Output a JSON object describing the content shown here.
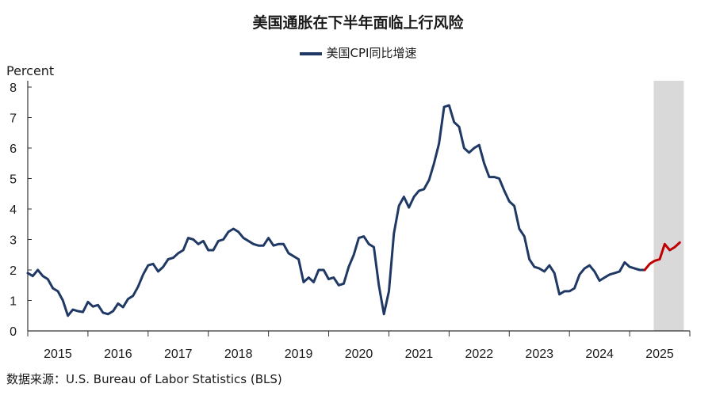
{
  "chart_data": {
    "type": "line",
    "title": "美国通胀在下半年面临上行风险",
    "ylabel": "Percent",
    "ylim": [
      0,
      8
    ],
    "yticks": [
      "0",
      "1",
      "2",
      "3",
      "4",
      "5",
      "6",
      "7",
      "8"
    ],
    "xlim": [
      2015,
      2026
    ],
    "xticks": [
      "2015",
      "2016",
      "2017",
      "2018",
      "2019",
      "2020",
      "2021",
      "2022",
      "2023",
      "2024",
      "2025"
    ],
    "shaded_region": [
      2025.4,
      2025.9
    ],
    "grid": false,
    "legend_position": "top-center",
    "series": [
      {
        "name": "美国CPI同比增速",
        "color": "#1f3864",
        "forecast_color": "#c00000",
        "forecast_start": 2025.25,
        "points": [
          [
            2015.0,
            1.9
          ],
          [
            2015.083,
            1.8
          ],
          [
            2015.167,
            2.0
          ],
          [
            2015.25,
            1.8
          ],
          [
            2015.333,
            1.7
          ],
          [
            2015.417,
            1.4
          ],
          [
            2015.5,
            1.3
          ],
          [
            2015.583,
            1.0
          ],
          [
            2015.667,
            0.5
          ],
          [
            2015.75,
            0.7
          ],
          [
            2015.833,
            0.65
          ],
          [
            2015.917,
            0.62
          ],
          [
            2016.0,
            0.95
          ],
          [
            2016.083,
            0.8
          ],
          [
            2016.167,
            0.85
          ],
          [
            2016.25,
            0.6
          ],
          [
            2016.333,
            0.55
          ],
          [
            2016.417,
            0.65
          ],
          [
            2016.5,
            0.9
          ],
          [
            2016.583,
            0.78
          ],
          [
            2016.667,
            1.05
          ],
          [
            2016.75,
            1.15
          ],
          [
            2016.833,
            1.45
          ],
          [
            2016.917,
            1.85
          ],
          [
            2017.0,
            2.15
          ],
          [
            2017.083,
            2.2
          ],
          [
            2017.167,
            1.95
          ],
          [
            2017.25,
            2.1
          ],
          [
            2017.333,
            2.35
          ],
          [
            2017.417,
            2.4
          ],
          [
            2017.5,
            2.55
          ],
          [
            2017.583,
            2.65
          ],
          [
            2017.667,
            3.05
          ],
          [
            2017.75,
            3.0
          ],
          [
            2017.833,
            2.85
          ],
          [
            2017.917,
            2.95
          ],
          [
            2018.0,
            2.65
          ],
          [
            2018.083,
            2.65
          ],
          [
            2018.167,
            2.95
          ],
          [
            2018.25,
            3.0
          ],
          [
            2018.333,
            3.25
          ],
          [
            2018.417,
            3.35
          ],
          [
            2018.5,
            3.25
          ],
          [
            2018.583,
            3.05
          ],
          [
            2018.667,
            2.95
          ],
          [
            2018.75,
            2.85
          ],
          [
            2018.833,
            2.8
          ],
          [
            2018.917,
            2.8
          ],
          [
            2019.0,
            3.05
          ],
          [
            2019.083,
            2.8
          ],
          [
            2019.167,
            2.85
          ],
          [
            2019.25,
            2.85
          ],
          [
            2019.333,
            2.55
          ],
          [
            2019.417,
            2.45
          ],
          [
            2019.5,
            2.35
          ],
          [
            2019.583,
            1.6
          ],
          [
            2019.667,
            1.75
          ],
          [
            2019.75,
            1.6
          ],
          [
            2019.833,
            2.0
          ],
          [
            2019.917,
            2.0
          ],
          [
            2020.0,
            1.7
          ],
          [
            2020.083,
            1.75
          ],
          [
            2020.167,
            1.5
          ],
          [
            2020.25,
            1.55
          ],
          [
            2020.333,
            2.1
          ],
          [
            2020.417,
            2.5
          ],
          [
            2020.5,
            3.05
          ],
          [
            2020.583,
            3.1
          ],
          [
            2020.667,
            2.85
          ],
          [
            2020.75,
            2.75
          ],
          [
            2020.833,
            1.5
          ],
          [
            2020.917,
            0.55
          ],
          [
            2021.0,
            1.3
          ],
          [
            2021.083,
            3.2
          ],
          [
            2021.167,
            4.1
          ],
          [
            2021.25,
            4.4
          ],
          [
            2021.333,
            4.05
          ],
          [
            2021.417,
            4.4
          ],
          [
            2021.5,
            4.6
          ],
          [
            2021.583,
            4.65
          ],
          [
            2021.667,
            4.95
          ],
          [
            2021.75,
            5.5
          ],
          [
            2021.833,
            6.15
          ],
          [
            2021.917,
            7.35
          ],
          [
            2022.0,
            7.4
          ],
          [
            2022.083,
            6.85
          ],
          [
            2022.167,
            6.7
          ],
          [
            2022.25,
            6.0
          ],
          [
            2022.333,
            5.85
          ],
          [
            2022.417,
            6.0
          ],
          [
            2022.5,
            6.1
          ],
          [
            2022.583,
            5.5
          ],
          [
            2022.667,
            5.05
          ],
          [
            2022.75,
            5.05
          ],
          [
            2022.833,
            5.0
          ],
          [
            2022.917,
            4.6
          ],
          [
            2023.0,
            4.25
          ],
          [
            2023.083,
            4.1
          ],
          [
            2023.167,
            3.35
          ],
          [
            2023.25,
            3.1
          ],
          [
            2023.333,
            2.35
          ],
          [
            2023.417,
            2.1
          ],
          [
            2023.5,
            2.05
          ],
          [
            2023.583,
            1.95
          ],
          [
            2023.667,
            2.15
          ],
          [
            2023.75,
            1.9
          ],
          [
            2023.833,
            1.2
          ],
          [
            2023.917,
            1.3
          ],
          [
            2024.0,
            1.3
          ],
          [
            2024.083,
            1.4
          ],
          [
            2024.167,
            1.85
          ],
          [
            2024.25,
            2.05
          ],
          [
            2024.333,
            2.15
          ],
          [
            2024.417,
            1.95
          ],
          [
            2024.5,
            1.65
          ],
          [
            2024.583,
            1.75
          ],
          [
            2024.667,
            1.85
          ],
          [
            2024.75,
            1.9
          ],
          [
            2024.833,
            1.95
          ],
          [
            2024.917,
            2.25
          ],
          [
            2025.0,
            2.1
          ],
          [
            2025.083,
            2.05
          ],
          [
            2025.167,
            2.0
          ],
          [
            2025.25,
            2.0
          ],
          [
            2025.333,
            2.2
          ],
          [
            2025.417,
            2.3
          ],
          [
            2025.5,
            2.35
          ],
          [
            2025.583,
            2.85
          ],
          [
            2025.667,
            2.65
          ],
          [
            2025.75,
            2.75
          ],
          [
            2025.833,
            2.9
          ]
        ]
      }
    ]
  },
  "source": "数据来源：U.S. Bureau of Labor Statistics (BLS)"
}
